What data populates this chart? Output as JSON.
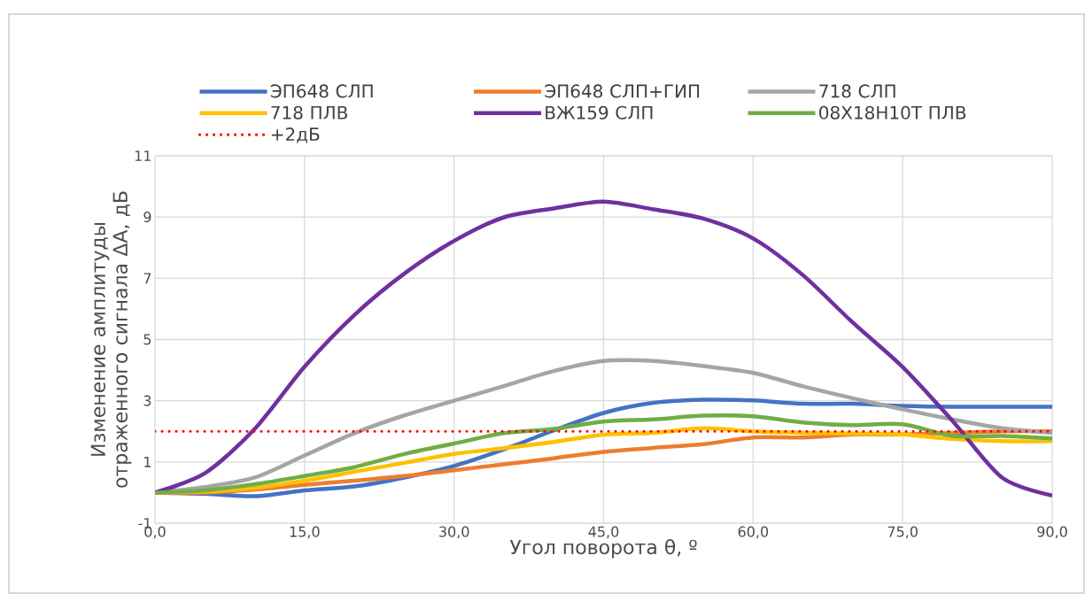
{
  "chart_data": {
    "type": "line",
    "xlabel": "Угол поворота θ, º",
    "ylabel": "Изменение амплитуды отраженного сигнала ΔА, дБ",
    "x": [
      0,
      5,
      10,
      15,
      20,
      25,
      30,
      35,
      40,
      45,
      50,
      55,
      60,
      65,
      70,
      75,
      80,
      85,
      90
    ],
    "series": [
      {
        "name": "ЭП648 СЛП",
        "color": "#4472c4",
        "values": [
          0,
          -0.04,
          -0.12,
          0.07,
          0.2,
          0.49,
          0.87,
          1.41,
          2.03,
          2.6,
          2.93,
          3.03,
          3.01,
          2.9,
          2.9,
          2.83,
          2.8,
          2.8,
          2.8
        ]
      },
      {
        "name": "ЭП648 СЛП+ГИП",
        "color": "#ed7d31",
        "values": [
          0,
          0,
          0.1,
          0.25,
          0.39,
          0.54,
          0.73,
          0.92,
          1.12,
          1.33,
          1.46,
          1.58,
          1.8,
          1.8,
          1.9,
          1.9,
          1.95,
          2.0,
          2.0
        ]
      },
      {
        "name": "718 СЛП",
        "color": "#a5a5a5",
        "values": [
          0,
          0.18,
          0.49,
          1.21,
          1.94,
          2.52,
          3.0,
          3.48,
          3.97,
          4.3,
          4.3,
          4.13,
          3.91,
          3.47,
          3.08,
          2.72,
          2.39,
          2.1,
          1.95
        ]
      },
      {
        "name": "718 ПЛВ",
        "color": "#ffc000",
        "values": [
          0,
          0.03,
          0.15,
          0.39,
          0.68,
          0.97,
          1.26,
          1.45,
          1.65,
          1.89,
          1.95,
          2.1,
          2.0,
          1.95,
          1.93,
          1.9,
          1.75,
          1.68,
          1.68
        ]
      },
      {
        "name": "ВЖ159 СЛП",
        "color": "#7030a0",
        "values": [
          0,
          0.63,
          2.08,
          4.11,
          5.8,
          7.15,
          8.22,
          8.99,
          9.28,
          9.5,
          9.25,
          8.95,
          8.3,
          7.1,
          5.55,
          4.1,
          2.34,
          0.48,
          -0.1
        ]
      },
      {
        "name": "08Х18Н10Т ПЛВ",
        "color": "#70ad47",
        "values": [
          0,
          0.07,
          0.27,
          0.54,
          0.83,
          1.26,
          1.6,
          1.94,
          2.08,
          2.32,
          2.39,
          2.51,
          2.49,
          2.29,
          2.2,
          2.23,
          1.85,
          1.85,
          1.77
        ]
      }
    ],
    "ref_lines": [
      {
        "axis": "y",
        "value": 2,
        "label": "+2дБ",
        "color": "#ff0000",
        "line_style": "dotted"
      }
    ],
    "xlim": [
      0,
      90
    ],
    "xticks": [
      {
        "value": 0,
        "label": "0,0"
      },
      {
        "value": 15,
        "label": "15,0"
      },
      {
        "value": 30,
        "label": "30,0"
      },
      {
        "value": 45,
        "label": "45,0"
      },
      {
        "value": 60,
        "label": "60,0"
      },
      {
        "value": 75,
        "label": "75,0"
      },
      {
        "value": 90,
        "label": "90,0"
      }
    ],
    "ylim": [
      -1,
      11
    ],
    "yticks": [
      -1,
      1,
      3,
      5,
      7,
      9,
      11
    ],
    "grid": true,
    "legend": "top",
    "marker": "none",
    "line_style": "solid"
  }
}
